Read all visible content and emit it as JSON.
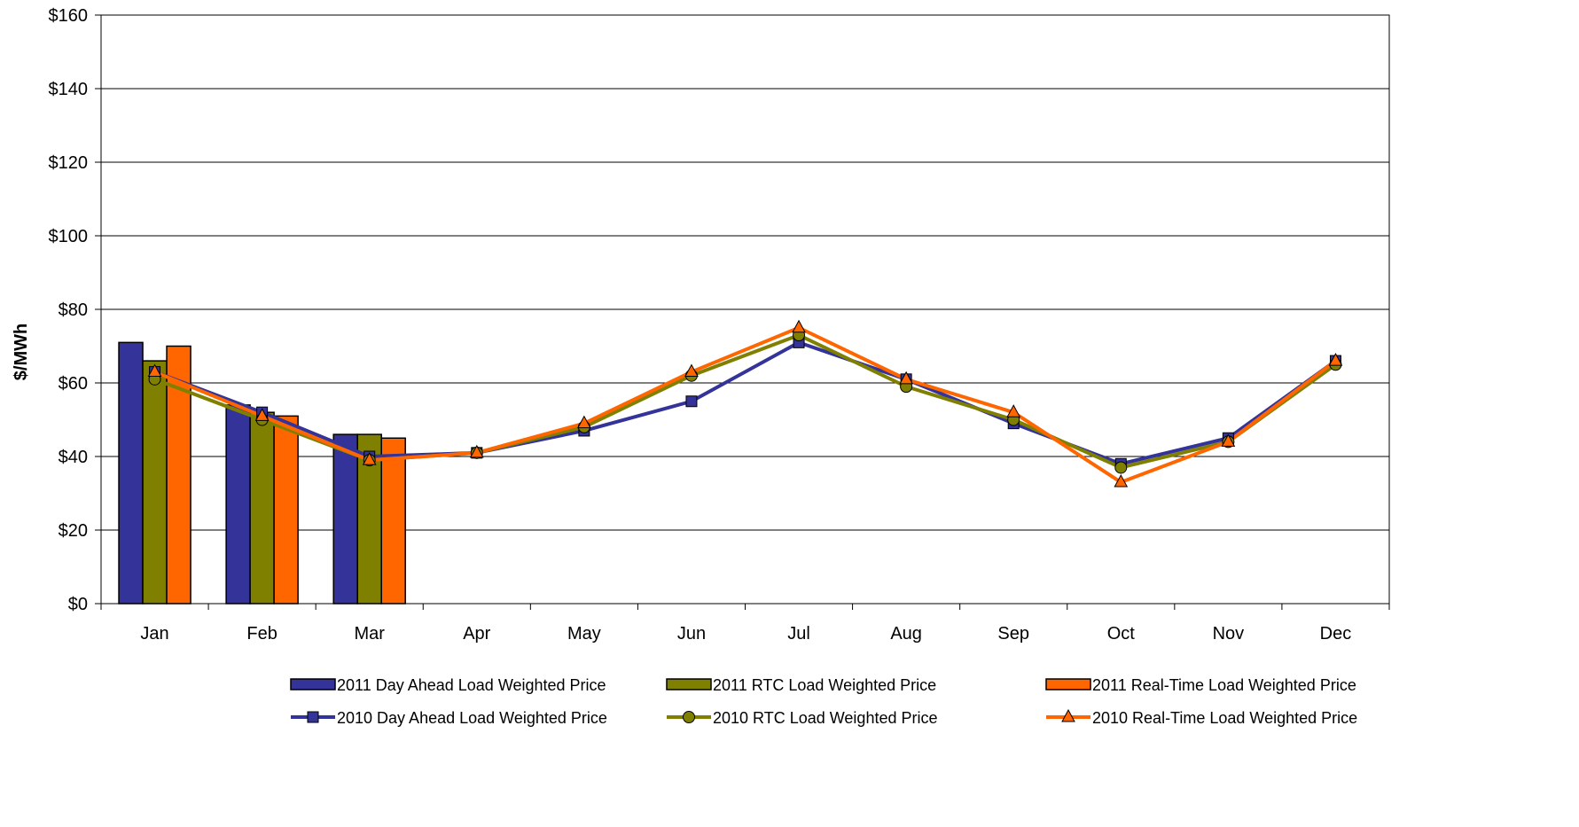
{
  "chart_data": {
    "type": "bar",
    "title": "",
    "xlabel": "",
    "ylabel": "$/MWh",
    "ylim": [
      0,
      160
    ],
    "yticks": [
      0,
      20,
      40,
      60,
      80,
      100,
      120,
      140,
      160
    ],
    "ytick_labels": [
      "$0",
      "$20",
      "$40",
      "$60",
      "$80",
      "$100",
      "$120",
      "$140",
      "$160"
    ],
    "grid": true,
    "legend_position": "bottom",
    "categories": [
      "Jan",
      "Feb",
      "Mar",
      "Apr",
      "May",
      "Jun",
      "Jul",
      "Aug",
      "Sep",
      "Oct",
      "Nov",
      "Dec"
    ],
    "bar_series": [
      {
        "name": "2011 Day Ahead Load Weighted Price",
        "color": "#333399",
        "values": [
          71,
          54,
          46
        ]
      },
      {
        "name": "2011 RTC Load Weighted Price",
        "color": "#808000",
        "values": [
          66,
          52,
          46
        ]
      },
      {
        "name": "2011 Real-Time Load Weighted Price",
        "color": "#ff6600",
        "values": [
          70,
          51,
          45
        ]
      }
    ],
    "line_series": [
      {
        "name": "2010 Day Ahead Load Weighted Price",
        "color": "#333399",
        "marker": "square",
        "values": [
          63,
          52,
          40,
          41,
          47,
          55,
          71,
          61,
          49,
          38,
          45,
          66
        ]
      },
      {
        "name": "2010 RTC Load Weighted Price",
        "color": "#808000",
        "marker": "circle",
        "values": [
          61,
          50,
          39,
          41,
          48,
          62,
          73,
          59,
          50,
          37,
          44,
          65
        ]
      },
      {
        "name": "2010 Real-Time Load Weighted Price",
        "color": "#ff6600",
        "marker": "triangle",
        "values": [
          63,
          51,
          39,
          41,
          49,
          63,
          75,
          61,
          52,
          33,
          44,
          66
        ]
      }
    ]
  }
}
